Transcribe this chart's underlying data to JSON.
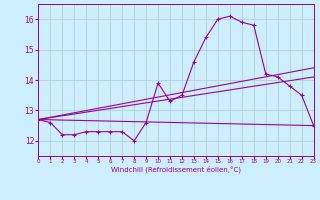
{
  "background_color": "#cceeff",
  "grid_color": "#aacccc",
  "line_color": "#990099",
  "xlabel": "Windchill (Refroidissement éolien,°C)",
  "xlim": [
    0,
    23
  ],
  "ylim": [
    11.5,
    16.5
  ],
  "yticks": [
    12,
    13,
    14,
    15,
    16
  ],
  "xticks": [
    0,
    1,
    2,
    3,
    4,
    5,
    6,
    7,
    8,
    9,
    10,
    11,
    12,
    13,
    14,
    15,
    16,
    17,
    18,
    19,
    20,
    21,
    22,
    23
  ],
  "line1_x": [
    0,
    1,
    2,
    3,
    4,
    5,
    6,
    7,
    8,
    9,
    10,
    11,
    12,
    13,
    14,
    15,
    16,
    17,
    18,
    19,
    20,
    21,
    22,
    23
  ],
  "line1_y": [
    12.7,
    12.6,
    12.2,
    12.2,
    12.3,
    12.3,
    12.3,
    12.3,
    12.0,
    12.6,
    13.9,
    13.3,
    13.5,
    14.6,
    15.4,
    16.0,
    16.1,
    15.9,
    15.8,
    14.2,
    14.1,
    13.8,
    13.5,
    12.5
  ],
  "line2_x": [
    0,
    23
  ],
  "line2_y": [
    12.7,
    12.5
  ],
  "line3_x": [
    0,
    23
  ],
  "line3_y": [
    12.7,
    14.4
  ],
  "line4_x": [
    0,
    23
  ],
  "line4_y": [
    12.7,
    14.1
  ]
}
